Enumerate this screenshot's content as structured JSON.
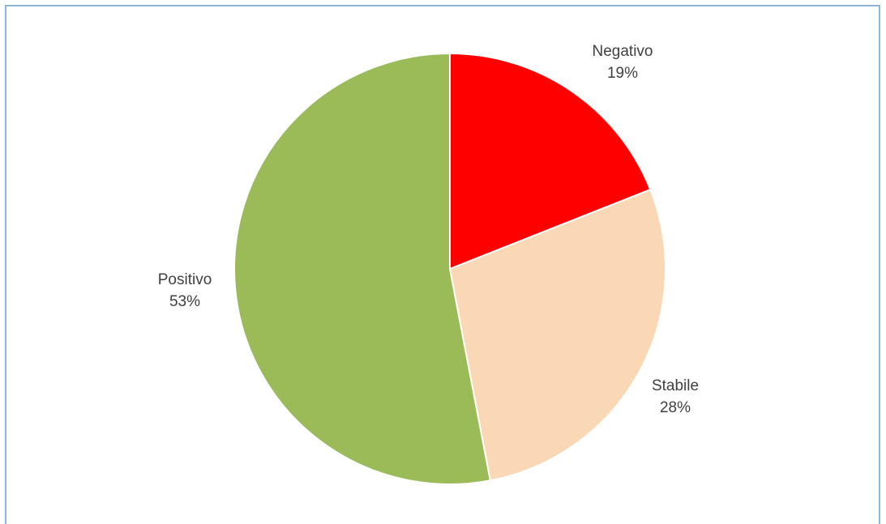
{
  "chart_data": {
    "type": "pie",
    "title": "",
    "slices": [
      {
        "label": "Negativo",
        "value": 19,
        "value_label": "19%",
        "color": "#ff0000"
      },
      {
        "label": "Stabile",
        "value": 28,
        "value_label": "28%",
        "color": "#fad7b5"
      },
      {
        "label": "Positivo",
        "value": 53,
        "value_label": "53%",
        "color": "#9bbb59"
      }
    ],
    "start_angle_deg": 0,
    "direction": "clockwise",
    "slice_border_color": "#ffffff",
    "label_color": "#404040",
    "frame_color": "#8eb4d8"
  }
}
